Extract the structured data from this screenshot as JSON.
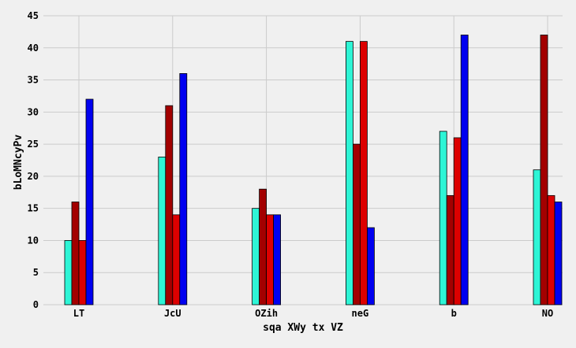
{
  "chart_data": {
    "type": "bar",
    "title": "",
    "xlabel": "sqa XWy tx VZ",
    "ylabel": "bLoMNcyPv",
    "categories": [
      "LT",
      "JcU",
      "OZih",
      "neG",
      "b",
      "NO"
    ],
    "series": [
      {
        "color": "#2ef5d6",
        "values": [
          10,
          23,
          15,
          41,
          27,
          21
        ]
      },
      {
        "color": "#a30000",
        "values": [
          16,
          31,
          18,
          25,
          17,
          42
        ]
      },
      {
        "color": "#dd0000",
        "values": [
          10,
          14,
          14,
          41,
          26,
          17
        ]
      },
      {
        "color": "#0000f0",
        "values": [
          32,
          36,
          14,
          12,
          42,
          16
        ]
      }
    ],
    "ylim": [
      0,
      45
    ],
    "yticks": [
      0,
      5,
      10,
      15,
      20,
      25,
      30,
      35,
      40,
      45
    ],
    "grid": true,
    "legend": "none"
  }
}
